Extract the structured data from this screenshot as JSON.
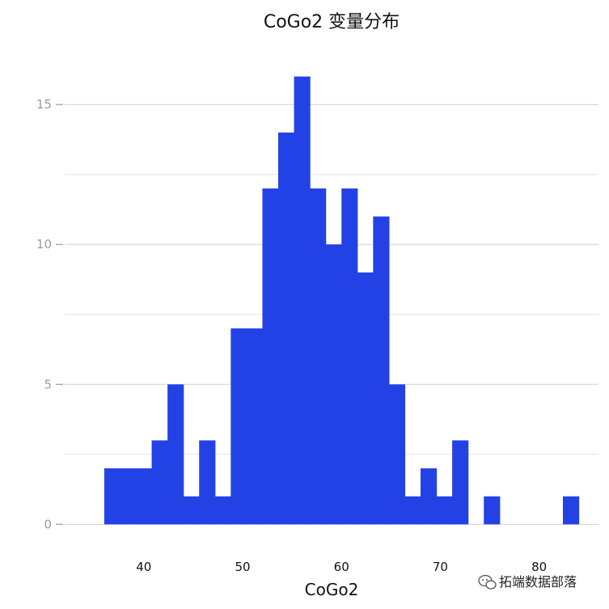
{
  "chart_data": {
    "type": "bar",
    "title": "CoGo2 变量分布",
    "xlabel": "CoGo2",
    "ylabel": "",
    "bin_width": 1.6,
    "bin_start": 36,
    "counts": [
      2,
      2,
      2,
      3,
      5,
      1,
      3,
      1,
      7,
      7,
      12,
      14,
      16,
      12,
      10,
      12,
      9,
      11,
      5,
      1,
      2,
      1,
      3,
      0,
      1,
      0,
      0,
      0,
      0,
      1
    ],
    "xlim": [
      32,
      86
    ],
    "ylim": [
      -0.8,
      17
    ],
    "xticks": [
      40,
      50,
      60,
      70,
      80
    ],
    "yticks": [
      0,
      5,
      10,
      15
    ],
    "grid": true,
    "bar_color": "#2342E6"
  },
  "watermark": {
    "text": "拓端数据部落",
    "icon": "wechat-icon"
  }
}
